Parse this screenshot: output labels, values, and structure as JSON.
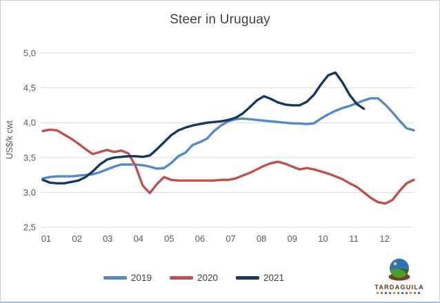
{
  "window": {
    "background": "#ffffff",
    "border_color": "#c9cdd3",
    "bottom_edge_color": "#a9bcd6"
  },
  "chart_data": {
    "type": "line",
    "title": "Steer in Uruguay",
    "xlabel": "",
    "ylabel": "US$/k cwt",
    "ylim": [
      2.5,
      5.0
    ],
    "y_ticks": [
      5.0,
      4.5,
      4.0,
      3.5,
      3.0,
      2.5
    ],
    "y_tick_labels": [
      "5,0",
      "4,5",
      "4,0",
      "3,5",
      "3,0",
      "2,5"
    ],
    "x_tick_labels": [
      "01",
      "02",
      "03",
      "04",
      "05",
      "06",
      "07",
      "08",
      "09",
      "10",
      "11",
      "12"
    ],
    "x_unit": "week of year (monthly labels)",
    "grid": "horizontal",
    "gridline_color": "#d8d8d8",
    "tick_label_color": "#595959",
    "legend_position": "bottom",
    "series": [
      {
        "name": "2019",
        "color": "#5488c7",
        "values": [
          3.2,
          3.22,
          3.23,
          3.23,
          3.23,
          3.24,
          3.25,
          3.26,
          3.29,
          3.33,
          3.37,
          3.4,
          3.4,
          3.4,
          3.39,
          3.37,
          3.34,
          3.35,
          3.42,
          3.52,
          3.57,
          3.68,
          3.72,
          3.77,
          3.88,
          3.96,
          4.02,
          4.05,
          4.06,
          4.05,
          4.04,
          4.03,
          4.02,
          4.01,
          4.0,
          3.99,
          3.99,
          3.98,
          3.99,
          4.06,
          4.12,
          4.17,
          4.21,
          4.24,
          4.28,
          4.32,
          4.35,
          4.35,
          4.26,
          4.15,
          4.03,
          3.92,
          3.89
        ]
      },
      {
        "name": "2020",
        "color": "#c0504d",
        "values": [
          3.88,
          3.9,
          3.89,
          3.83,
          3.77,
          3.7,
          3.62,
          3.55,
          3.58,
          3.61,
          3.58,
          3.6,
          3.56,
          3.38,
          3.1,
          2.99,
          3.12,
          3.22,
          3.18,
          3.17,
          3.17,
          3.17,
          3.17,
          3.17,
          3.17,
          3.18,
          3.18,
          3.2,
          3.24,
          3.28,
          3.33,
          3.38,
          3.42,
          3.44,
          3.41,
          3.37,
          3.33,
          3.35,
          3.33,
          3.3,
          3.27,
          3.23,
          3.19,
          3.13,
          3.08,
          3.0,
          2.92,
          2.86,
          2.84,
          2.89,
          3.02,
          3.13,
          3.18
        ]
      },
      {
        "name": "2021",
        "color": "#17375e",
        "values": [
          3.18,
          3.14,
          3.13,
          3.13,
          3.15,
          3.17,
          3.22,
          3.3,
          3.4,
          3.47,
          3.5,
          3.51,
          3.52,
          3.52,
          3.51,
          3.53,
          3.62,
          3.72,
          3.82,
          3.89,
          3.93,
          3.96,
          3.98,
          4.0,
          4.01,
          4.02,
          4.04,
          4.07,
          4.13,
          4.22,
          4.32,
          4.38,
          4.34,
          4.29,
          4.26,
          4.25,
          4.25,
          4.3,
          4.4,
          4.55,
          4.68,
          4.72,
          4.58,
          4.4,
          4.27,
          4.2
        ]
      }
    ]
  },
  "branding": {
    "logo_text": "TARDAGUILA",
    "emblem": {
      "sky_color": "#2e74b5",
      "hill_color": "#4e9c2e",
      "hill_shadow_color": "#2f6b1f",
      "sun_color": "#f5c93f",
      "base_color": "#70451f"
    }
  }
}
